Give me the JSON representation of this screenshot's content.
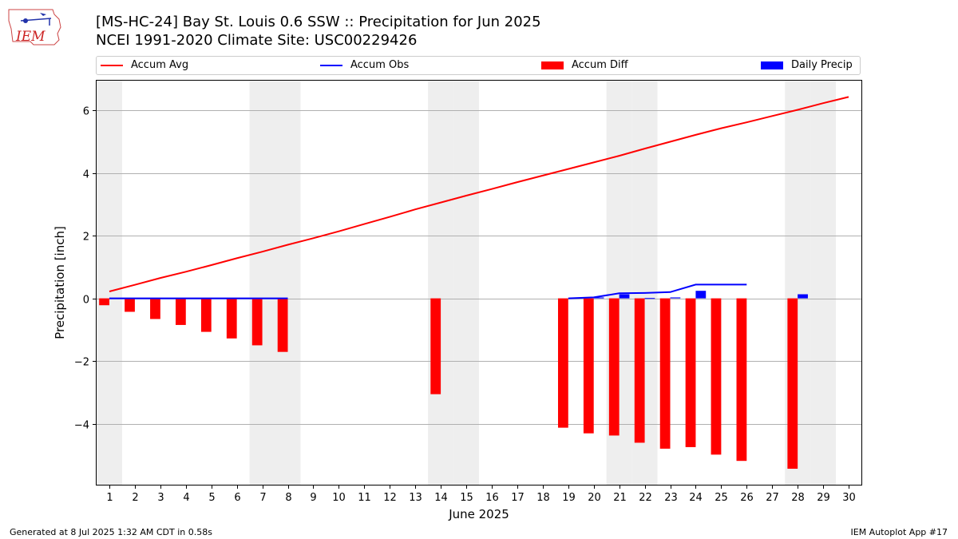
{
  "header": {
    "title_line1": "[MS-HC-24] Bay St. Louis 0.6 SSW :: Precipitation for Jun 2025",
    "title_line2": "NCEI 1991-2020 Climate Site: USC00229426",
    "logo_text": "IEM"
  },
  "legend": {
    "accum_avg": "Accum Avg",
    "accum_obs": "Accum Obs",
    "accum_diff": "Accum Diff",
    "daily_precip": "Daily Precip"
  },
  "colors": {
    "avg": "#ff0000",
    "obs": "#0000ff",
    "diff": "#ff0000",
    "daily": "#0000ff",
    "weekend_shade": "#eeeeee",
    "grid": "#b0b0b0"
  },
  "footer": {
    "generated": "Generated at 8 Jul 2025 1:32 AM CDT in 0.58s",
    "app": "IEM Autoplot App #17"
  },
  "chart_data": {
    "type": "bar",
    "xlabel": "June 2025",
    "ylabel": "Precipitation [inch]",
    "xlim": [
      0.5,
      30.5
    ],
    "ylim": [
      -5.95,
      6.95
    ],
    "y_ticks": [
      -4,
      -2,
      0,
      2,
      4,
      6
    ],
    "y_tick_labels": [
      "−4",
      "−2",
      "0",
      "2",
      "4",
      "6"
    ],
    "x_ticks": [
      1,
      2,
      3,
      4,
      5,
      6,
      7,
      8,
      9,
      10,
      11,
      12,
      13,
      14,
      15,
      16,
      17,
      18,
      19,
      20,
      21,
      22,
      23,
      24,
      25,
      26,
      27,
      28,
      29,
      30
    ],
    "grid": "horizontal",
    "weekend_days": [
      1,
      7,
      8,
      14,
      15,
      21,
      22,
      28,
      29
    ],
    "accum_avg": {
      "days": [
        1,
        2,
        3,
        4,
        5,
        6,
        7,
        8,
        9,
        10,
        11,
        12,
        13,
        14,
        15,
        16,
        17,
        18,
        19,
        20,
        21,
        22,
        23,
        24,
        25,
        26,
        27,
        28,
        29,
        30
      ],
      "values": [
        0.22,
        0.43,
        0.65,
        0.85,
        1.06,
        1.28,
        1.49,
        1.71,
        1.92,
        2.14,
        2.37,
        2.6,
        2.84,
        3.06,
        3.28,
        3.49,
        3.71,
        3.92,
        4.13,
        4.34,
        4.55,
        4.78,
        5.0,
        5.22,
        5.43,
        5.62,
        5.82,
        6.02,
        6.23,
        6.43
      ]
    },
    "accum_obs": [
      {
        "days": [
          1,
          2,
          3,
          4,
          5,
          6,
          7,
          8
        ],
        "values": [
          0,
          0,
          0,
          0,
          0,
          0,
          0,
          0
        ]
      },
      {
        "days": [
          19,
          20,
          21,
          22,
          23,
          24,
          25,
          26
        ],
        "values": [
          0,
          0.03,
          0.16,
          0.17,
          0.2,
          0.44,
          0.44,
          0.44
        ]
      }
    ],
    "accum_diff": {
      "days": [
        1,
        2,
        3,
        4,
        5,
        6,
        7,
        8,
        14,
        19,
        20,
        21,
        22,
        23,
        24,
        25,
        26,
        28
      ],
      "values": [
        -0.22,
        -0.43,
        -0.66,
        -0.85,
        -1.07,
        -1.28,
        -1.5,
        -1.71,
        -3.06,
        -4.13,
        -4.31,
        -4.38,
        -4.61,
        -4.8,
        -4.75,
        -4.99,
        -5.19,
        -5.44
      ]
    },
    "daily_precip": {
      "days": [
        20,
        21,
        22,
        23,
        24,
        28
      ],
      "values": [
        0.03,
        0.13,
        0.01,
        0.03,
        0.24,
        0.13
      ]
    }
  }
}
